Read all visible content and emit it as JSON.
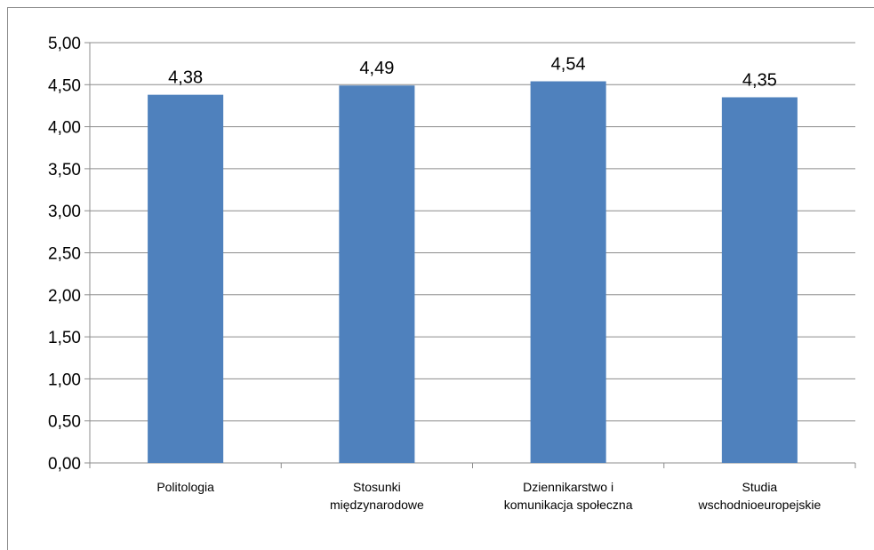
{
  "chart_data": {
    "type": "bar",
    "categories": [
      [
        "Politologia"
      ],
      [
        "Stosunki",
        "międzynarodowe"
      ],
      [
        "Dziennikarstwo i",
        "komunikacja społeczna"
      ],
      [
        "Studia",
        "wschodnioeuropejskie"
      ]
    ],
    "values": [
      4.38,
      4.49,
      4.54,
      4.35
    ],
    "value_labels": [
      "4,38",
      "4,49",
      "4,54",
      "4,35"
    ],
    "ylim": [
      0,
      5
    ],
    "ytick_labels": [
      "0,00",
      "0,50",
      "1,00",
      "1,50",
      "2,00",
      "2,50",
      "3,00",
      "3,50",
      "4,00",
      "4,50",
      "5,00"
    ],
    "grid": true,
    "legend": "none",
    "title": "",
    "xlabel": "",
    "ylabel": "",
    "colors": {
      "bar": "#4f81bd",
      "grid": "#8c8c8c",
      "axis": "#8c8c8c"
    }
  }
}
